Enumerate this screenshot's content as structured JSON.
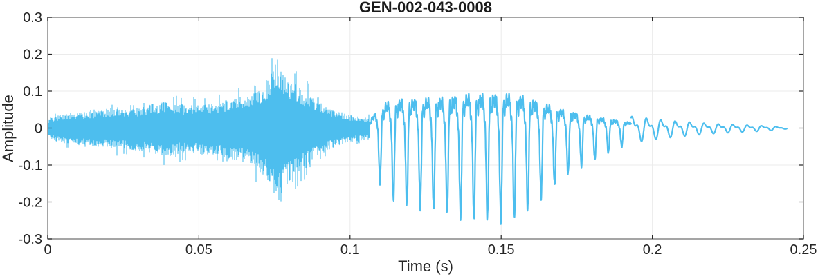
{
  "figure": {
    "background_color": "#ffffff",
    "axis_box_color": "#878787",
    "tick_mark_color": "#262626",
    "grid_color": "#ebebeb",
    "text_color": "#262626"
  },
  "chart_data": {
    "type": "line",
    "title": "GEN-002-043-0008",
    "xlabel": "Time (s)",
    "ylabel": "Amplitude",
    "xlim": [
      0,
      0.25
    ],
    "ylim": [
      -0.3,
      0.3
    ],
    "xticks": [
      0,
      0.05,
      0.1,
      0.15,
      0.2,
      0.25
    ],
    "xtick_labels": [
      "0",
      "0.05",
      "0.1",
      "0.15",
      "0.2",
      "0.25"
    ],
    "yticks": [
      -0.3,
      -0.2,
      -0.1,
      0,
      0.1,
      0.2,
      0.3
    ],
    "ytick_labels": [
      "-0.3",
      "-0.2",
      "-0.1",
      "0",
      "0.1",
      "0.2",
      "0.3"
    ],
    "grid": true,
    "legend": "none",
    "line_color": "#4DBEEE",
    "signal": {
      "description": "speech waveform: dense fricative noise (0 to ~0.107 s) with burst peaking +0.23/-0.27 near t=0.076 s, voiced periodic vowel (~0.107 to 0.193 s) peaking about +/-0.245 near t=0.14-0.155 s, then small decaying tail ending at ~0.244 s",
      "duration_s": 0.2445,
      "segments": [
        {
          "kind": "noise",
          "t_start": 0.0,
          "t_end": 0.1065,
          "seed": 42,
          "spike_rate": 0.08,
          "envelope": [
            [
              0.0,
              0.03
            ],
            [
              0.003,
              0.05
            ],
            [
              0.008,
              0.06
            ],
            [
              0.015,
              0.065
            ],
            [
              0.022,
              0.075
            ],
            [
              0.03,
              0.08
            ],
            [
              0.038,
              0.105
            ],
            [
              0.045,
              0.09
            ],
            [
              0.052,
              0.095
            ],
            [
              0.058,
              0.105
            ],
            [
              0.063,
              0.12
            ],
            [
              0.068,
              0.14
            ],
            [
              0.071,
              0.17
            ],
            [
              0.0735,
              0.2
            ],
            [
              0.076,
              0.27
            ],
            [
              0.078,
              0.23
            ],
            [
              0.08,
              0.19
            ],
            [
              0.083,
              0.16
            ],
            [
              0.086,
              0.14
            ],
            [
              0.089,
              0.11
            ],
            [
              0.092,
              0.085
            ],
            [
              0.096,
              0.065
            ],
            [
              0.1,
              0.05
            ],
            [
              0.1035,
              0.045
            ],
            [
              0.1065,
              0.04
            ]
          ]
        },
        {
          "kind": "voiced",
          "t_start": 0.1065,
          "t_end": 0.193,
          "f0_hz": 225,
          "texture": 0.05,
          "harmonics": [
            [
              1.0,
              0.0
            ],
            [
              0.58,
              1.6
            ],
            [
              0.34,
              2.9
            ],
            [
              0.2,
              4.0
            ]
          ],
          "envelope": [
            [
              0.1065,
              0.06
            ],
            [
              0.109,
              0.13
            ],
            [
              0.112,
              0.185
            ],
            [
              0.116,
              0.205
            ],
            [
              0.12,
              0.21
            ],
            [
              0.125,
              0.215
            ],
            [
              0.13,
              0.22
            ],
            [
              0.135,
              0.235
            ],
            [
              0.14,
              0.245
            ],
            [
              0.15,
              0.248
            ],
            [
              0.155,
              0.24
            ],
            [
              0.158,
              0.228
            ],
            [
              0.162,
              0.195
            ],
            [
              0.166,
              0.165
            ],
            [
              0.17,
              0.135
            ],
            [
              0.174,
              0.115
            ],
            [
              0.178,
              0.095
            ],
            [
              0.182,
              0.08
            ],
            [
              0.186,
              0.065
            ],
            [
              0.19,
              0.05
            ],
            [
              0.193,
              0.042
            ]
          ]
        },
        {
          "kind": "tail",
          "t_start": 0.193,
          "t_end": 0.2445,
          "f0_hz": 210,
          "texture": 0.0,
          "harmonics": [
            [
              0.8,
              0.5
            ],
            [
              0.45,
              1.6
            ]
          ],
          "envelope": [
            [
              0.193,
              0.04
            ],
            [
              0.198,
              0.034
            ],
            [
              0.203,
              0.028
            ],
            [
              0.21,
              0.022
            ],
            [
              0.218,
              0.016
            ],
            [
              0.226,
              0.012
            ],
            [
              0.234,
              0.009
            ],
            [
              0.24,
              0.006
            ],
            [
              0.2445,
              0.002
            ]
          ]
        }
      ]
    }
  }
}
